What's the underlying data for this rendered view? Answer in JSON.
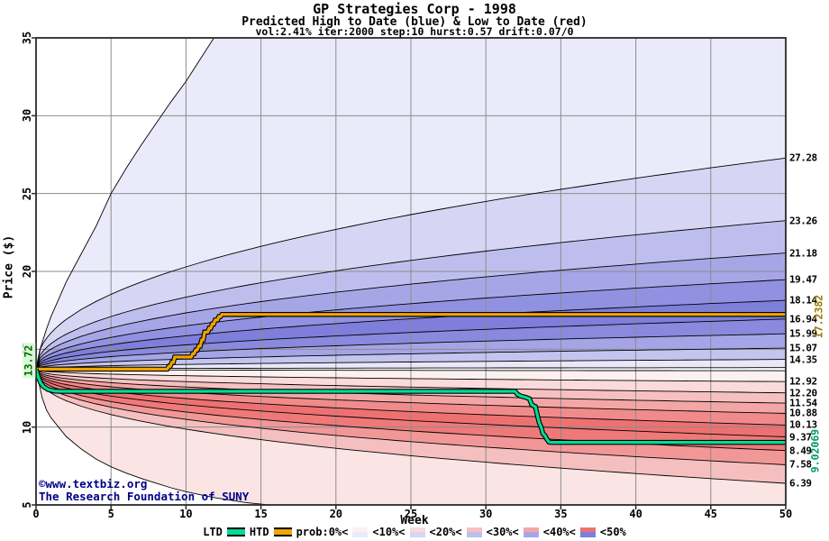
{
  "header": {
    "title": "GP Strategies Corp - 1998",
    "subtitle": "Predicted High to Date (blue) &  Low to Date (red)",
    "params": "vol:2.41% iter:2000 step:10 hurst:0.57 drift:0.07/0"
  },
  "watermark": {
    "line1": "©www.textbiz.org",
    "line2": "The Research Foundation of SUNY",
    "color": "#000088"
  },
  "side_labels": {
    "start": "13.72",
    "start_color": "#006600",
    "start_bg": "#d8f8d8",
    "htd_final": "17.2382",
    "htd_final_color": "#9c7a00",
    "ltd_final": "9.02069",
    "ltd_final_color": "#009968"
  },
  "chart_data": {
    "type": "area",
    "subtype": "probability-fan",
    "title": "GP Strategies Corp - 1998",
    "xlabel": "Week",
    "ylabel": "Price ($)",
    "xlim": [
      0,
      50
    ],
    "ylim": [
      5,
      35
    ],
    "xticks": [
      0,
      5,
      10,
      15,
      20,
      25,
      30,
      35,
      40,
      45,
      50
    ],
    "yticks": [
      5,
      10,
      15,
      20,
      25,
      30,
      35
    ],
    "grid": true,
    "grid_color": "#8c8c8c",
    "frame_color": "#2a2a2a",
    "start_price": 13.72,
    "series": [
      {
        "name": "HTD",
        "color": "#f0a500",
        "outline": "#000000",
        "final_value": 17.2382,
        "points": [
          [
            0,
            13.72
          ],
          [
            8.75,
            13.72
          ],
          [
            8.85,
            13.9
          ],
          [
            8.95,
            13.9
          ],
          [
            9.05,
            14.15
          ],
          [
            9.15,
            14.15
          ],
          [
            9.25,
            14.5
          ],
          [
            10.35,
            14.5
          ],
          [
            10.45,
            14.72
          ],
          [
            10.55,
            14.72
          ],
          [
            10.65,
            14.95
          ],
          [
            10.75,
            14.95
          ],
          [
            10.85,
            15.2
          ],
          [
            10.95,
            15.2
          ],
          [
            11.05,
            15.6
          ],
          [
            11.15,
            15.6
          ],
          [
            11.25,
            16.1
          ],
          [
            11.45,
            16.1
          ],
          [
            11.55,
            16.35
          ],
          [
            11.65,
            16.35
          ],
          [
            11.75,
            16.62
          ],
          [
            11.85,
            16.62
          ],
          [
            11.95,
            16.88
          ],
          [
            12.1,
            16.88
          ],
          [
            12.2,
            17.1
          ],
          [
            12.3,
            17.1
          ],
          [
            12.4,
            17.2382
          ],
          [
            50,
            17.2382
          ]
        ]
      },
      {
        "name": "LTD",
        "color": "#00dc96",
        "outline": "#000000",
        "final_value": 9.02069,
        "points": [
          [
            0,
            13.72
          ],
          [
            0.15,
            13.2
          ],
          [
            0.3,
            12.85
          ],
          [
            0.5,
            12.6
          ],
          [
            0.8,
            12.42
          ],
          [
            1.2,
            12.32
          ],
          [
            1.6,
            12.3
          ],
          [
            31.95,
            12.3
          ],
          [
            32.1,
            12.12
          ],
          [
            32.3,
            12.0
          ],
          [
            32.5,
            11.95
          ],
          [
            32.7,
            11.9
          ],
          [
            32.9,
            11.82
          ],
          [
            33.05,
            11.45
          ],
          [
            33.15,
            11.38
          ],
          [
            33.3,
            11.32
          ],
          [
            33.45,
            10.7
          ],
          [
            33.55,
            10.3
          ],
          [
            33.7,
            9.95
          ],
          [
            33.8,
            9.6
          ],
          [
            33.95,
            9.45
          ],
          [
            34.05,
            9.25
          ],
          [
            34.2,
            9.05
          ],
          [
            34.35,
            9.02069
          ],
          [
            50,
            9.02069
          ]
        ]
      }
    ],
    "upper_envelope": [
      [
        0,
        13.72
      ],
      [
        0.3,
        15.1
      ],
      [
        0.7,
        16.3
      ],
      [
        1,
        17.1
      ],
      [
        1.5,
        18.2
      ],
      [
        2,
        19.3
      ],
      [
        2.5,
        20.2
      ],
      [
        3,
        21.1
      ],
      [
        4,
        22.9
      ],
      [
        5,
        25.0
      ],
      [
        6,
        26.6
      ],
      [
        7,
        28.1
      ],
      [
        8,
        29.5
      ],
      [
        9,
        30.9
      ],
      [
        10,
        32.2
      ],
      [
        11,
        33.7
      ],
      [
        12,
        35.2
      ],
      [
        12.4,
        36.0
      ]
    ],
    "lower_envelope": [
      [
        0,
        13.72
      ],
      [
        0.2,
        12.8
      ],
      [
        0.4,
        11.9
      ],
      [
        0.7,
        11.1
      ],
      [
        1,
        10.6
      ],
      [
        1.5,
        10.0
      ],
      [
        2,
        9.4
      ],
      [
        2.5,
        9.0
      ],
      [
        3,
        8.6
      ],
      [
        4,
        7.95
      ],
      [
        5,
        7.45
      ],
      [
        6,
        7.05
      ],
      [
        7,
        6.7
      ],
      [
        8,
        6.4
      ],
      [
        9,
        6.1
      ],
      [
        10,
        5.85
      ],
      [
        11,
        5.65
      ],
      [
        12,
        5.45
      ],
      [
        13,
        5.3
      ],
      [
        14,
        5.15
      ],
      [
        15,
        5.05
      ],
      [
        16,
        4.95
      ],
      [
        17,
        4.8
      ],
      [
        18,
        4.6
      ]
    ],
    "blue_boundaries": {
      "ends": [
        27.28,
        23.26,
        21.18,
        19.47,
        18.14,
        16.94,
        15.99,
        15.07,
        14.35,
        13.82
      ],
      "exponent": 0.45
    },
    "red_boundaries": {
      "ends": [
        13.62,
        12.92,
        12.2,
        11.54,
        10.88,
        10.13,
        9.37,
        8.49,
        7.58,
        6.39
      ],
      "exponent": 0.4
    },
    "blue_band_colors": [
      "#eaeafa",
      "#d6d6f4",
      "#bebeee",
      "#a6a6e7",
      "#9191e1",
      "#7e7edb",
      "#8989de",
      "#a4a4e6",
      "#c4c4ef",
      "#e8e8f9"
    ],
    "red_band_colors": [
      "#fdf0f0",
      "#fadada",
      "#f7c0c0",
      "#f4a6a6",
      "#f18b8b",
      "#ee7171",
      "#ef7979",
      "#f29797",
      "#f6bfbf",
      "#fae4e4"
    ],
    "right_labels": [
      {
        "value": 27.28,
        "text": "27.28"
      },
      {
        "value": 23.26,
        "text": "23.26"
      },
      {
        "value": 21.18,
        "text": "21.18"
      },
      {
        "value": 19.47,
        "text": "19.47"
      },
      {
        "value": 18.14,
        "text": "18.14"
      },
      {
        "value": 16.94,
        "text": "16.94"
      },
      {
        "value": 15.99,
        "text": "15.99"
      },
      {
        "value": 15.07,
        "text": "15.07"
      },
      {
        "value": 14.35,
        "text": "14.35"
      },
      {
        "value": 12.92,
        "text": "12.92"
      },
      {
        "value": 12.2,
        "text": "12.20"
      },
      {
        "value": 11.54,
        "text": "11.54"
      },
      {
        "value": 10.88,
        "text": "10.88"
      },
      {
        "value": 10.13,
        "text": "10.13"
      },
      {
        "value": 9.37,
        "text": "9.37"
      },
      {
        "value": 8.49,
        "text": "8.49"
      },
      {
        "value": 7.58,
        "text": "7.58"
      },
      {
        "value": 6.39,
        "text": "6.39"
      }
    ]
  },
  "legend": {
    "ltd_label": "LTD",
    "htd_label": "HTD",
    "ltd_color": "#00dc96",
    "htd_color": "#f0a500",
    "prob_items": [
      {
        "label": "prob:0%<",
        "swatch_red": "#fdf0f0",
        "swatch_blue": "#eaeafa"
      },
      {
        "label": "<10%<",
        "swatch_red": "#fadada",
        "swatch_blue": "#d6d6f4"
      },
      {
        "label": "<20%<",
        "swatch_red": "#f7c0c0",
        "swatch_blue": "#bebeee"
      },
      {
        "label": "<30%<",
        "swatch_red": "#f4a6a6",
        "swatch_blue": "#a6a6e7"
      },
      {
        "label": "<40%<",
        "swatch_red": "#ee7171",
        "swatch_blue": "#7e7edb"
      },
      {
        "label": "<50%",
        "swatch_red": null,
        "swatch_blue": null
      }
    ]
  }
}
